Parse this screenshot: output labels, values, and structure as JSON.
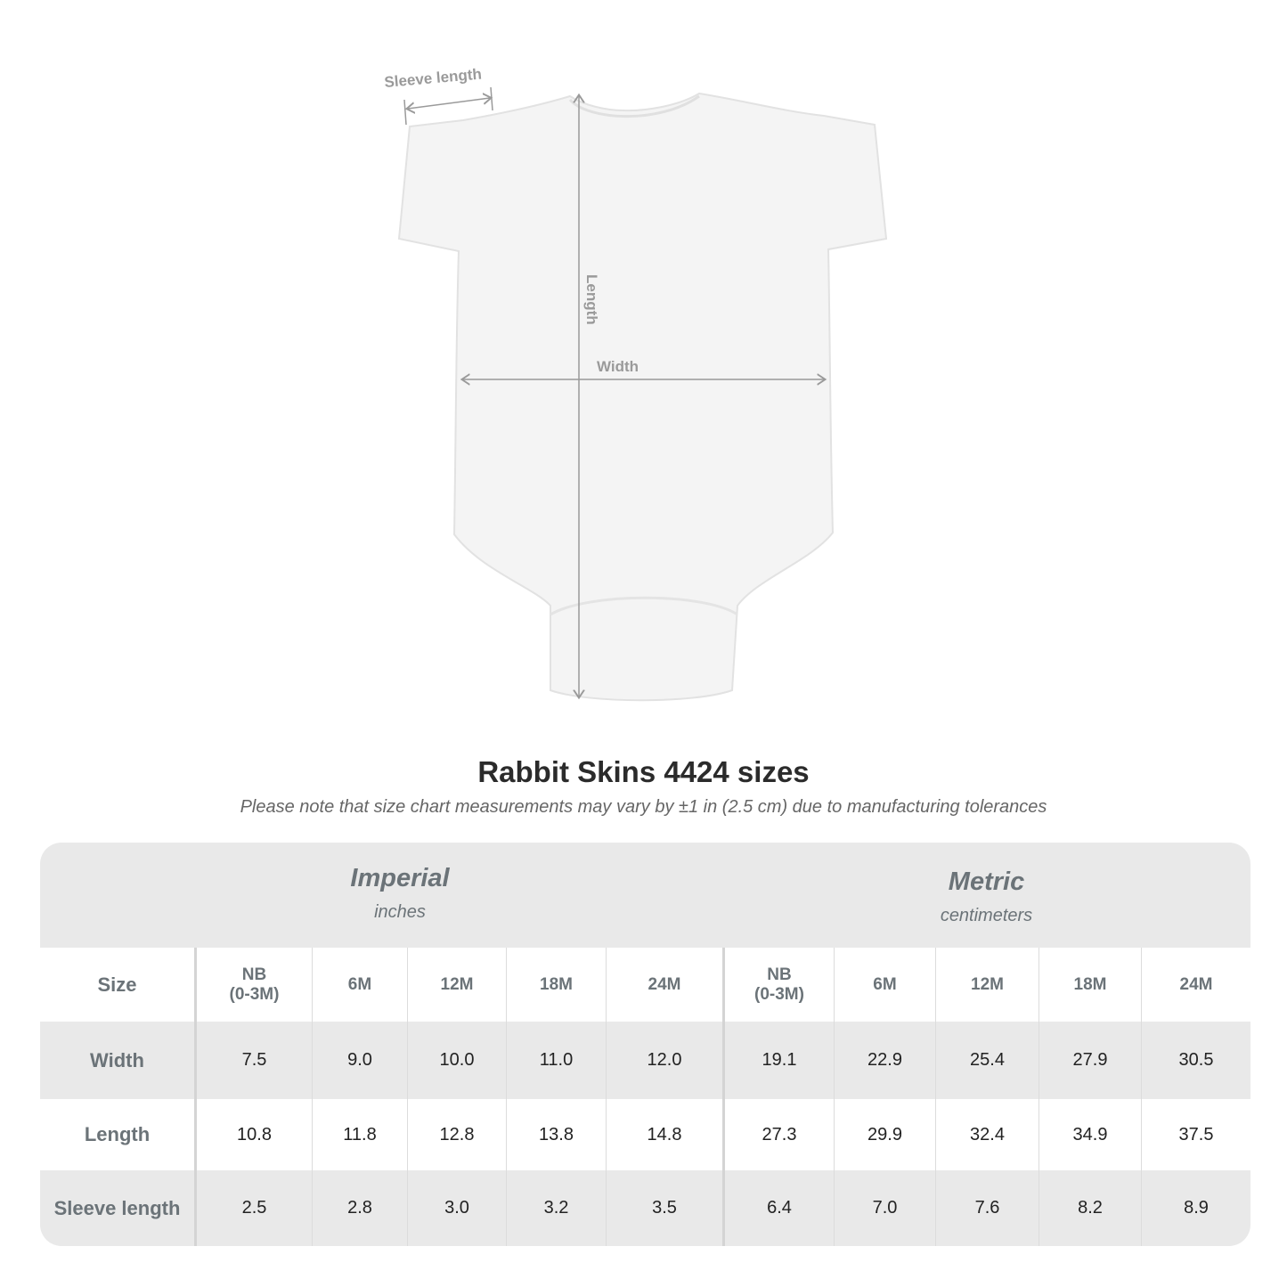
{
  "diagram": {
    "labels": {
      "sleeve": "Sleeve length",
      "length": "Length",
      "width": "Width"
    },
    "colors": {
      "garment": "#f4f4f4",
      "annotation": "#9a9a9a"
    }
  },
  "title": "Rabbit Skins 4424 sizes",
  "note": "Please note that size chart measurements may vary by ±1 in (2.5 cm) due to manufacturing tolerances",
  "table": {
    "imperial": {
      "name": "Imperial",
      "unit": "inches"
    },
    "metric": {
      "name": "Metric",
      "unit": "centimeters"
    },
    "size_label": "Size",
    "sizes": [
      "NB\n(0-3M)",
      "6M",
      "12M",
      "18M",
      "24M",
      "NB\n(0-3M)",
      "6M",
      "12M",
      "18M",
      "24M"
    ],
    "rows": [
      {
        "label": "Width",
        "values": [
          "7.5",
          "9.0",
          "10.0",
          "11.0",
          "12.0",
          "19.1",
          "22.9",
          "25.4",
          "27.9",
          "30.5"
        ]
      },
      {
        "label": "Length",
        "values": [
          "10.8",
          "11.8",
          "12.8",
          "13.8",
          "14.8",
          "27.3",
          "29.9",
          "32.4",
          "34.9",
          "37.5"
        ]
      },
      {
        "label": "Sleeve length",
        "values": [
          "2.5",
          "2.8",
          "3.0",
          "3.2",
          "3.5",
          "6.4",
          "7.0",
          "7.6",
          "8.2",
          "8.9"
        ]
      }
    ]
  }
}
